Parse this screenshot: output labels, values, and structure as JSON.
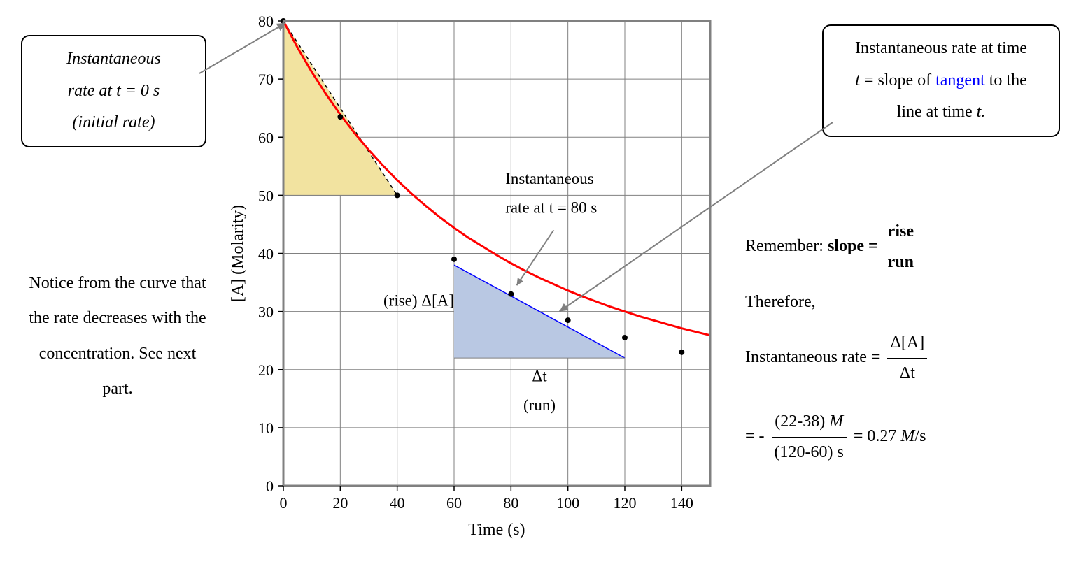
{
  "left_callout": {
    "line1": "Instantaneous",
    "line2": "rate at t = 0 s",
    "line3": "(initial rate)"
  },
  "right_callout": {
    "line1": "Instantaneous rate at time",
    "line2_a": "t",
    "line2_b": " = slope of ",
    "line2_tangent": "tangent",
    "line2_c": " to the",
    "line3_a": "line at time ",
    "line3_b": "t."
  },
  "left_note": "Notice from the curve that the rate decreases with the concentration. See next part.",
  "right_math": {
    "remember": "Remember: ",
    "slope_eq": "slope = ",
    "rise": "rise",
    "run": "run",
    "therefore": "Therefore,",
    "inst_rate_label": "Instantaneous rate = ",
    "delta_a": "Δ[A]",
    "delta_t": "Δt",
    "calc_num": "(22-38) M",
    "calc_den": "(120-60) s",
    "result": " = 0.27 M/s",
    "neg": "= - "
  },
  "chart": {
    "type": "line",
    "xlabel": "Time (s)",
    "ylabel": "[A] (Molarity)",
    "xlim": [
      0,
      150
    ],
    "ylim": [
      0,
      80
    ],
    "xticks": [
      0,
      20,
      40,
      60,
      80,
      100,
      120,
      140
    ],
    "yticks": [
      0,
      10,
      20,
      30,
      40,
      50,
      60,
      70,
      80
    ],
    "tick_fontsize": 22,
    "label_fontsize": 24,
    "grid_color": "#808080",
    "background_color": "#ffffff",
    "border_color": "#808080",
    "curve": {
      "points_x": [
        0,
        5,
        10,
        15,
        20,
        25,
        30,
        35,
        40,
        45,
        50,
        55,
        60,
        65,
        70,
        75,
        80,
        85,
        90,
        95,
        100,
        105,
        110,
        115,
        120,
        125,
        130,
        135,
        140,
        145,
        150
      ],
      "points_y": [
        80,
        75.4,
        71.2,
        67.4,
        63.9,
        60.7,
        57.8,
        55.1,
        52.6,
        50.3,
        48.2,
        46.2,
        44.4,
        42.7,
        41.2,
        39.7,
        38.3,
        37.0,
        35.8,
        34.7,
        33.6,
        32.6,
        31.7,
        30.8,
        30.0,
        29.2,
        28.5,
        27.8,
        27.1,
        26.5,
        25.9
      ],
      "color": "#ff0000",
      "stroke_width": 3
    },
    "data_points": {
      "x": [
        0,
        20,
        40,
        60,
        80,
        100,
        120,
        140
      ],
      "y": [
        80,
        63.5,
        50,
        39,
        33,
        28.5,
        25.5,
        23
      ],
      "marker_color": "#000000",
      "marker_radius": 4
    },
    "yellow_triangle": {
      "points": [
        [
          0,
          80
        ],
        [
          40,
          50
        ],
        [
          0,
          50
        ]
      ],
      "fill": "#f2e3a0",
      "stroke": "#000000",
      "dash": "5,5"
    },
    "blue_triangle": {
      "points": [
        [
          60,
          38
        ],
        [
          120,
          22
        ],
        [
          60,
          22
        ]
      ],
      "fill": "#b9c8e3",
      "tangent_color": "#0000ff",
      "tangent_width": 1.5
    },
    "annotations": {
      "inst80_line1": "Instantaneous",
      "inst80_line2": "rate at t = 80 s",
      "rise_delta_a": "(rise) Δ[A]",
      "run_delta_t1": "Δt",
      "run_delta_t2": "(run)"
    },
    "arrows": {
      "arrow_color": "#808080",
      "arrow_width": 2
    }
  }
}
